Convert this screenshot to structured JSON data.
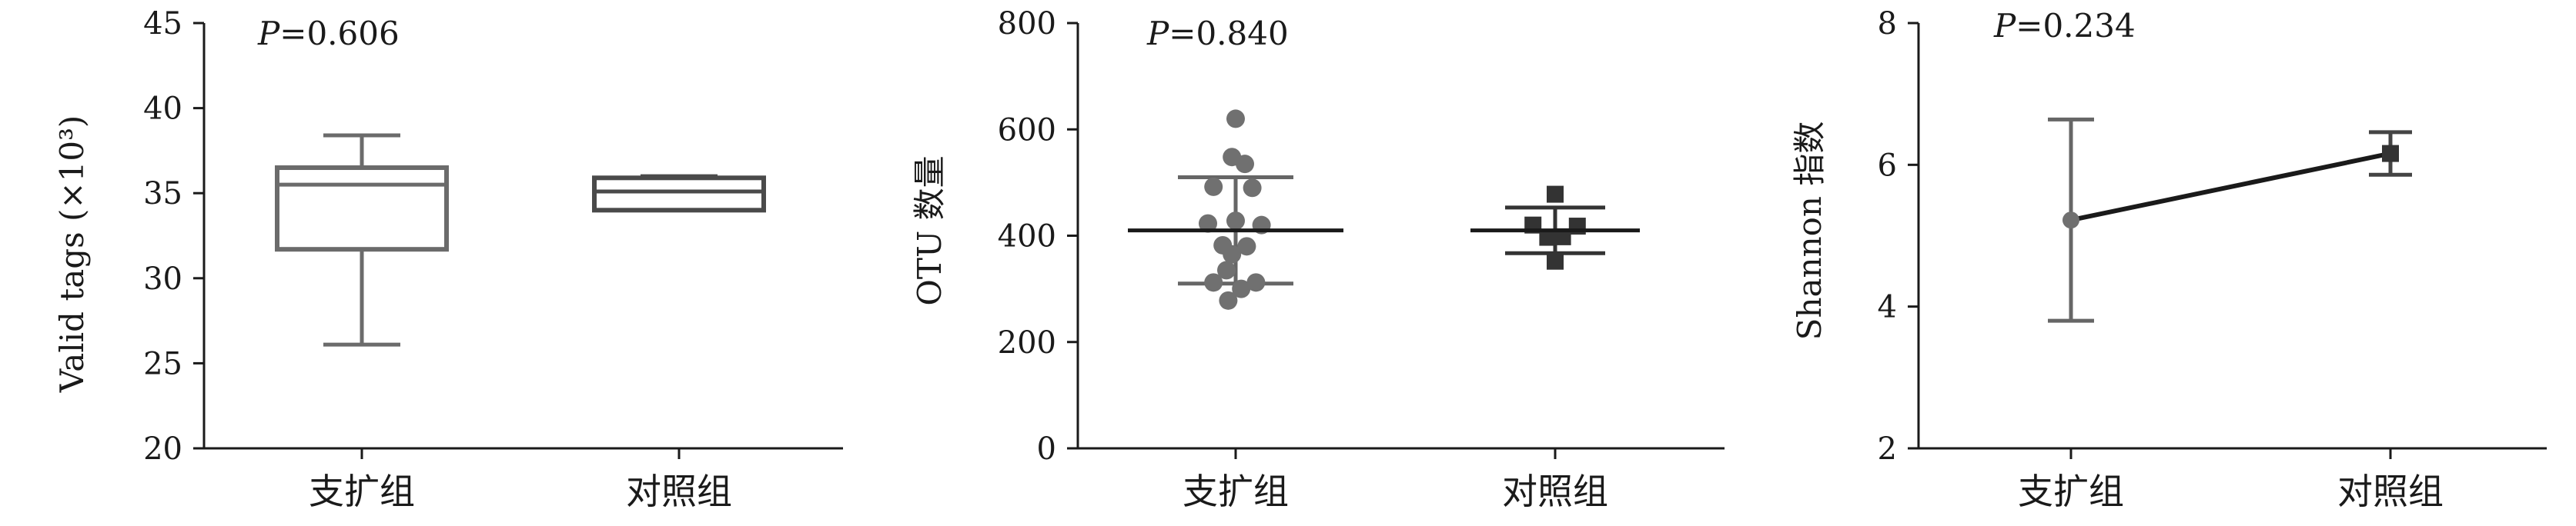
{
  "colors": {
    "axis": "#1a1a1a",
    "box": "#6b6b6b",
    "box_control": "#4a4a4a",
    "points_circle": "#707070",
    "points_square": "#333333",
    "line": "#1a1a1a",
    "errorbar": "#666666"
  },
  "chart_data": [
    {
      "type": "box",
      "ylabel": "Valid tags (×10³)",
      "ylim": [
        20,
        45
      ],
      "yticks": [
        "20",
        "25",
        "30",
        "35",
        "40",
        "45"
      ],
      "annotation": "P=0.606",
      "categories": [
        "支扩组",
        "对照组"
      ],
      "series": [
        {
          "category": "支扩组",
          "min": 26.1,
          "q1": 31.7,
          "median": 35.5,
          "q3": 36.5,
          "max": 38.4
        },
        {
          "category": "对照组",
          "min": 34.0,
          "q1": 34.0,
          "median": 35.1,
          "q3": 35.9,
          "max": 36.0
        }
      ]
    },
    {
      "type": "scatter",
      "ylabel": "OTU 数量",
      "ylim": [
        0,
        800
      ],
      "yticks": [
        "0",
        "200",
        "400",
        "600",
        "800"
      ],
      "annotation": "P=0.840",
      "categories": [
        "支扩组",
        "对照组"
      ],
      "series": [
        {
          "category": "支扩组",
          "marker": "circle",
          "points": [
            [
              0,
              620
            ],
            [
              -0.02,
              548
            ],
            [
              0.05,
              535
            ],
            [
              -0.12,
              492
            ],
            [
              0.09,
              490
            ],
            [
              -0.15,
              423
            ],
            [
              0.14,
              420
            ],
            [
              0.0,
              428
            ],
            [
              -0.07,
              382
            ],
            [
              0.06,
              380
            ],
            [
              -0.02,
              365
            ],
            [
              -0.05,
              335
            ],
            [
              -0.12,
              312
            ],
            [
              0.11,
              312
            ],
            [
              0.03,
              300
            ],
            [
              -0.04,
              278
            ]
          ],
          "mean": 410,
          "sd_low": 310,
          "sd_high": 510
        },
        {
          "category": "对照组",
          "marker": "square",
          "points": [
            [
              0.0,
              478
            ],
            [
              -0.12,
              420
            ],
            [
              0.12,
              418
            ],
            [
              -0.04,
              397
            ],
            [
              0.04,
              398
            ],
            [
              0.0,
              352
            ]
          ],
          "mean": 410,
          "sd_low": 367,
          "sd_high": 453
        }
      ]
    },
    {
      "type": "line",
      "ylabel": "Shannon 指数",
      "ylim": [
        2,
        8
      ],
      "yticks": [
        "2",
        "4",
        "6",
        "8"
      ],
      "annotation": "P=0.234",
      "categories": [
        "支扩组",
        "对照组"
      ],
      "series": [
        {
          "values": [
            5.22,
            6.16
          ],
          "error_low": [
            3.8,
            5.86
          ],
          "error_high": [
            6.64,
            6.46
          ],
          "markers": [
            "circle",
            "square"
          ]
        }
      ]
    }
  ]
}
